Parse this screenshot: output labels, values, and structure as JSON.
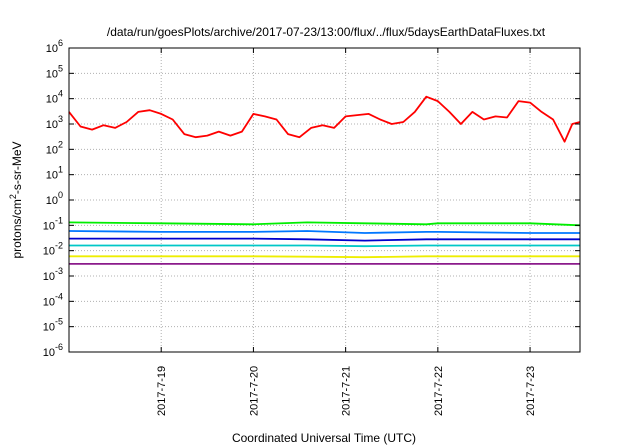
{
  "chart_data": {
    "type": "line",
    "title": "/data/run/goesPlots/archive/2017-07-23/13:00/flux/../flux/5daysEarthDataFluxes.txt",
    "xlabel": "Coordinated Universal Time (UTC)",
    "ylabel_parts": {
      "pre": "protons/cm",
      "sup": "2",
      "post": "-s-sr-MeV"
    },
    "y_scale": "log",
    "ylim": [
      1e-06,
      1000000.0
    ],
    "y_ticks": [
      {
        "value": 1e-06,
        "base": "10",
        "exp": "-6"
      },
      {
        "value": 1e-05,
        "base": "10",
        "exp": "-5"
      },
      {
        "value": 0.0001,
        "base": "10",
        "exp": "-4"
      },
      {
        "value": 0.001,
        "base": "10",
        "exp": "-3"
      },
      {
        "value": 0.01,
        "base": "10",
        "exp": "-2"
      },
      {
        "value": 0.1,
        "base": "10",
        "exp": "-1"
      },
      {
        "value": 1,
        "base": "10",
        "exp": "0"
      },
      {
        "value": 10,
        "base": "10",
        "exp": "1"
      },
      {
        "value": 100,
        "base": "10",
        "exp": "2"
      },
      {
        "value": 1000,
        "base": "10",
        "exp": "3"
      },
      {
        "value": 10000,
        "base": "10",
        "exp": "4"
      },
      {
        "value": 100000,
        "base": "10",
        "exp": "5"
      },
      {
        "value": 1000000,
        "base": "10",
        "exp": "6"
      }
    ],
    "xlim": [
      "2017-07-18 00:00",
      "2017-07-23 13:00"
    ],
    "x_ticks": [
      "2017-7-19",
      "2017-7-20",
      "2017-7-21",
      "2017-7-22",
      "2017-7-23"
    ],
    "grid": true,
    "series": [
      {
        "color": "#ff0000",
        "points": [
          [
            "2017-07-18 00:00",
            3000
          ],
          [
            "2017-07-18 03:00",
            800
          ],
          [
            "2017-07-18 06:00",
            600
          ],
          [
            "2017-07-18 09:00",
            900
          ],
          [
            "2017-07-18 12:00",
            700
          ],
          [
            "2017-07-18 15:00",
            1200
          ],
          [
            "2017-07-18 18:00",
            3000
          ],
          [
            "2017-07-18 21:00",
            3500
          ],
          [
            "2017-07-19 00:00",
            2500
          ],
          [
            "2017-07-19 03:00",
            1500
          ],
          [
            "2017-07-19 06:00",
            400
          ],
          [
            "2017-07-19 09:00",
            300
          ],
          [
            "2017-07-19 12:00",
            350
          ],
          [
            "2017-07-19 15:00",
            500
          ],
          [
            "2017-07-19 18:00",
            350
          ],
          [
            "2017-07-19 21:00",
            500
          ],
          [
            "2017-07-20 00:00",
            2500
          ],
          [
            "2017-07-20 03:00",
            2000
          ],
          [
            "2017-07-20 06:00",
            1500
          ],
          [
            "2017-07-20 09:00",
            400
          ],
          [
            "2017-07-20 12:00",
            300
          ],
          [
            "2017-07-20 15:00",
            700
          ],
          [
            "2017-07-20 18:00",
            900
          ],
          [
            "2017-07-20 21:00",
            700
          ],
          [
            "2017-07-21 00:00",
            2000
          ],
          [
            "2017-07-21 06:00",
            2500
          ],
          [
            "2017-07-21 09:00",
            1500
          ],
          [
            "2017-07-21 12:00",
            1000
          ],
          [
            "2017-07-21 15:00",
            1200
          ],
          [
            "2017-07-21 18:00",
            3000
          ],
          [
            "2017-07-21 21:00",
            12000
          ],
          [
            "2017-07-22 00:00",
            8000
          ],
          [
            "2017-07-22 03:00",
            3000
          ],
          [
            "2017-07-22 06:00",
            1000
          ],
          [
            "2017-07-22 09:00",
            3000
          ],
          [
            "2017-07-22 12:00",
            1500
          ],
          [
            "2017-07-22 15:00",
            2000
          ],
          [
            "2017-07-22 18:00",
            1800
          ],
          [
            "2017-07-22 21:00",
            8000
          ],
          [
            "2017-07-23 00:00",
            7000
          ],
          [
            "2017-07-23 03:00",
            3000
          ],
          [
            "2017-07-23 06:00",
            1500
          ],
          [
            "2017-07-23 09:00",
            200
          ],
          [
            "2017-07-23 11:00",
            1000
          ],
          [
            "2017-07-23 13:00",
            1200
          ]
        ]
      },
      {
        "color": "#00ee00",
        "points": [
          [
            "2017-07-18 00:00",
            0.13
          ],
          [
            "2017-07-19 00:00",
            0.12
          ],
          [
            "2017-07-20 00:00",
            0.11
          ],
          [
            "2017-07-20 14:00",
            0.13
          ],
          [
            "2017-07-21 05:00",
            0.12
          ],
          [
            "2017-07-21 21:00",
            0.11
          ],
          [
            "2017-07-22 00:00",
            0.12
          ],
          [
            "2017-07-23 00:00",
            0.12
          ],
          [
            "2017-07-23 13:00",
            0.1
          ]
        ]
      },
      {
        "color": "#0077ff",
        "points": [
          [
            "2017-07-18 00:00",
            0.06
          ],
          [
            "2017-07-19 00:00",
            0.055
          ],
          [
            "2017-07-20 00:00",
            0.055
          ],
          [
            "2017-07-20 14:00",
            0.06
          ],
          [
            "2017-07-21 05:00",
            0.05
          ],
          [
            "2017-07-21 21:00",
            0.055
          ],
          [
            "2017-07-22 00:00",
            0.055
          ],
          [
            "2017-07-23 00:00",
            0.05
          ],
          [
            "2017-07-23 13:00",
            0.05
          ]
        ]
      },
      {
        "color": "#0000cc",
        "points": [
          [
            "2017-07-18 00:00",
            0.03
          ],
          [
            "2017-07-19 00:00",
            0.03
          ],
          [
            "2017-07-20 00:00",
            0.03
          ],
          [
            "2017-07-20 14:00",
            0.028
          ],
          [
            "2017-07-21 05:00",
            0.025
          ],
          [
            "2017-07-21 21:00",
            0.028
          ],
          [
            "2017-07-22 00:00",
            0.028
          ],
          [
            "2017-07-23 00:00",
            0.028
          ],
          [
            "2017-07-23 13:00",
            0.028
          ]
        ]
      },
      {
        "color": "#00c8c8",
        "points": [
          [
            "2017-07-18 00:00",
            0.016
          ],
          [
            "2017-07-19 00:00",
            0.016
          ],
          [
            "2017-07-20 00:00",
            0.016
          ],
          [
            "2017-07-20 14:00",
            0.016
          ],
          [
            "2017-07-21 05:00",
            0.015
          ],
          [
            "2017-07-21 21:00",
            0.016
          ],
          [
            "2017-07-22 00:00",
            0.016
          ],
          [
            "2017-07-23 00:00",
            0.016
          ],
          [
            "2017-07-23 13:00",
            0.016
          ]
        ]
      },
      {
        "color": "#eeee00",
        "points": [
          [
            "2017-07-18 00:00",
            0.006
          ],
          [
            "2017-07-19 00:00",
            0.006
          ],
          [
            "2017-07-20 00:00",
            0.006
          ],
          [
            "2017-07-20 14:00",
            0.0058
          ],
          [
            "2017-07-21 05:00",
            0.0055
          ],
          [
            "2017-07-21 21:00",
            0.006
          ],
          [
            "2017-07-22 00:00",
            0.006
          ],
          [
            "2017-07-23 00:00",
            0.006
          ],
          [
            "2017-07-23 13:00",
            0.006
          ]
        ]
      },
      {
        "color": "#8b1a8b",
        "points": [
          [
            "2017-07-18 00:00",
            0.003
          ],
          [
            "2017-07-19 00:00",
            0.003
          ],
          [
            "2017-07-20 00:00",
            0.003
          ],
          [
            "2017-07-20 14:00",
            0.003
          ],
          [
            "2017-07-21 05:00",
            0.003
          ],
          [
            "2017-07-21 21:00",
            0.003
          ],
          [
            "2017-07-22 00:00",
            0.003
          ],
          [
            "2017-07-23 00:00",
            0.003
          ],
          [
            "2017-07-23 13:00",
            0.003
          ]
        ]
      }
    ]
  }
}
